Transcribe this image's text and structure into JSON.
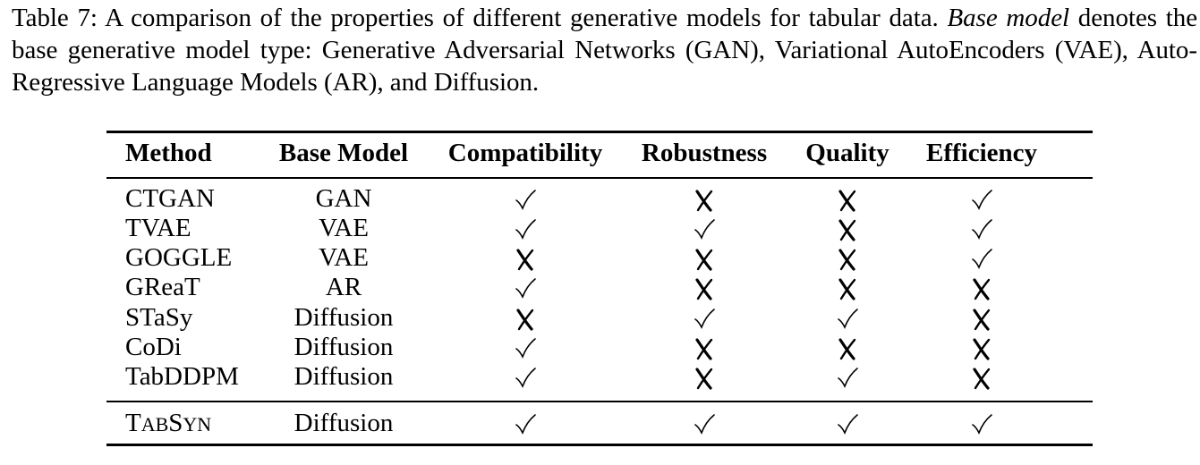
{
  "caption": {
    "label": "Table 7:",
    "text_a": "A comparison of the properties of different generative models for tabular data.",
    "emph": "Base model",
    "text_b": "denotes the base generative model type: Generative Adversarial Networks (GAN), Variational AutoEncoders (VAE), Auto-Regressive Language Models (AR), and Diffusion."
  },
  "table": {
    "headers": [
      "Method",
      "Base Model",
      "Compatibility",
      "Robustness",
      "Quality",
      "Efficiency"
    ],
    "rows": [
      {
        "method": "CTGAN",
        "base": "GAN",
        "marks": [
          "check",
          "cross",
          "cross",
          "check"
        ]
      },
      {
        "method": "TVAE",
        "base": "VAE",
        "marks": [
          "check",
          "check",
          "cross",
          "check"
        ]
      },
      {
        "method": "GOGGLE",
        "base": "VAE",
        "marks": [
          "cross",
          "cross",
          "cross",
          "check"
        ]
      },
      {
        "method": "GReaT",
        "base": "AR",
        "marks": [
          "check",
          "cross",
          "cross",
          "cross"
        ]
      },
      {
        "method": "STaSy",
        "base": "Diffusion",
        "marks": [
          "cross",
          "check",
          "check",
          "cross"
        ]
      },
      {
        "method": "CoDi",
        "base": "Diffusion",
        "marks": [
          "check",
          "cross",
          "cross",
          "cross"
        ]
      },
      {
        "method": "TabDDPM",
        "base": "Diffusion",
        "marks": [
          "check",
          "cross",
          "check",
          "cross"
        ]
      }
    ],
    "final_row": {
      "method": "TabSyn",
      "method_display": {
        "T": "T",
        "ab": "AB",
        "S": "S",
        "yn": "YN"
      },
      "base": "Diffusion",
      "marks": [
        "check",
        "check",
        "check",
        "check"
      ]
    },
    "mark_icons": {
      "check": "check-mark-icon",
      "cross": "cross-mark-icon"
    }
  }
}
